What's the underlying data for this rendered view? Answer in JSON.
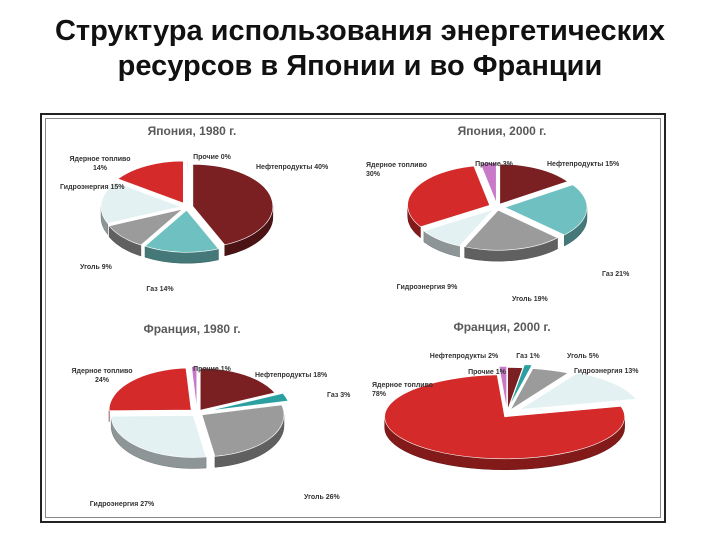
{
  "slide": {
    "title_line1": "Структура использования энергетических",
    "title_line2": "ресурсов в Японии и во Франции"
  },
  "chart_data": [
    {
      "type": "pie",
      "title": "Япония, 1980 г.",
      "slices": [
        {
          "name": "Нефтепродукты",
          "value": 40,
          "label": "Нефтепродукты 40%",
          "color": "#7a1f22"
        },
        {
          "name": "Газ",
          "value": 14,
          "label": "Газ 14%",
          "color": "#6fc1c1"
        },
        {
          "name": "Уголь",
          "value": 9,
          "label": "Уголь 9%",
          "color": "#9b9b9b"
        },
        {
          "name": "Гидроэнергия",
          "value": 15,
          "label": "Гидроэнергия 15%",
          "color": "#e3f1f3"
        },
        {
          "name": "Ядерное топливо",
          "value": 14,
          "label": "Ядерное топливо 14%",
          "color": "#d42a2a"
        },
        {
          "name": "Прочие",
          "value": 0,
          "label": "Прочие 0%",
          "color": "#c879c8"
        }
      ]
    },
    {
      "type": "pie",
      "title": "Япония, 2000 г.",
      "slices": [
        {
          "name": "Нефтепродукты",
          "value": 15,
          "label": "Нефтепродукты 15%",
          "color": "#7a1f22"
        },
        {
          "name": "Газ",
          "value": 21,
          "label": "Газ 21%",
          "color": "#6fc1c1"
        },
        {
          "name": "Уголь",
          "value": 19,
          "label": "Уголь 19%",
          "color": "#9b9b9b"
        },
        {
          "name": "Гидроэнергия",
          "value": 9,
          "label": "Гидроэнергия 9%",
          "color": "#e3f1f3"
        },
        {
          "name": "Ядерное топливо",
          "value": 30,
          "label": "Ядерное топливо 30%",
          "color": "#d42a2a"
        },
        {
          "name": "Прочие",
          "value": 3,
          "label": "Прочие 3%",
          "color": "#c879c8"
        }
      ]
    },
    {
      "type": "pie",
      "title": "Франция, 1980 г.",
      "slices": [
        {
          "name": "Нефтепродукты",
          "value": 18,
          "label": "Нефтепродукты 18%",
          "color": "#7a1f22"
        },
        {
          "name": "Газ",
          "value": 3,
          "label": "Газ 3%",
          "color": "#2aa0a0"
        },
        {
          "name": "Уголь",
          "value": 26,
          "label": "Уголь 26%",
          "color": "#9b9b9b"
        },
        {
          "name": "Гидроэнергия",
          "value": 27,
          "label": "Гидроэнергия 27%",
          "color": "#e3f1f3"
        },
        {
          "name": "Ядерное топливо",
          "value": 24,
          "label": "Ядерное топливо 24%",
          "color": "#d42a2a"
        },
        {
          "name": "Прочие",
          "value": 1,
          "label": "Прочие 1%",
          "color": "#c879c8"
        }
      ]
    },
    {
      "type": "pie",
      "title": "Франция, 2000 г.",
      "slices": [
        {
          "name": "Нефтепродукты",
          "value": 2,
          "label": "Нефтепродукты 2%",
          "color": "#7a1f22"
        },
        {
          "name": "Газ",
          "value": 1,
          "label": "Газ 1%",
          "color": "#2aa0a0"
        },
        {
          "name": "Уголь",
          "value": 5,
          "label": "Уголь 5%",
          "color": "#9b9b9b"
        },
        {
          "name": "Гидроэнергия",
          "value": 13,
          "label": "Гидроэнергия 13%",
          "color": "#e3f1f3"
        },
        {
          "name": "Ядерное топливо",
          "value": 78,
          "label": "Ядерное топливо 78%",
          "color": "#d42a2a"
        },
        {
          "name": "Прочие",
          "value": 1,
          "label": "Прочие 1%",
          "color": "#c879c8"
        }
      ]
    }
  ]
}
